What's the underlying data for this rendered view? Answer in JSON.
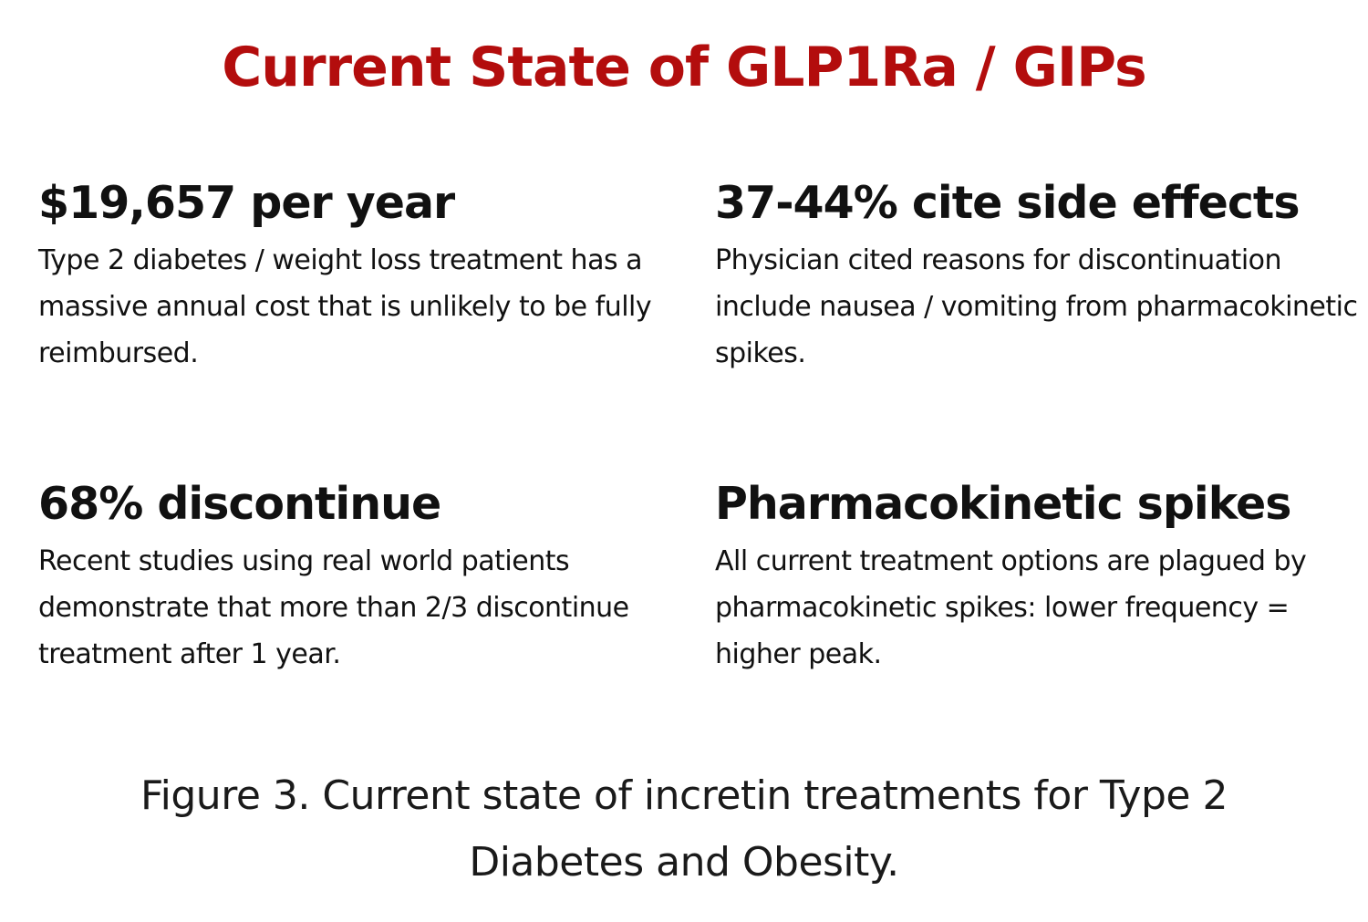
{
  "title": {
    "text": "Current State of GLP1Ra / GIPs",
    "color": "#b30d0d"
  },
  "blocks": [
    {
      "heading": "$19,657 per year",
      "body": "Type 2 diabetes / weight loss treatment has a massive annual cost that is unlikely to be fully reimbursed."
    },
    {
      "heading": "37-44% cite side effects",
      "body": "Physician cited reasons for discontinuation include nausea / vomiting from pharmacokinetic spikes."
    },
    {
      "heading": "68% discontinue",
      "body": "Recent studies using real world patients demonstrate that more than 2/3 discontinue treatment after 1 year."
    },
    {
      "heading": "Pharmacokinetic spikes",
      "body": "All current treatment options are plagued by pharmacokinetic spikes: lower frequency = higher peak."
    }
  ],
  "caption": {
    "line1": "Figure 3. Current state of incretin treatments for Type 2",
    "line2": "Diabetes and Obesity."
  }
}
